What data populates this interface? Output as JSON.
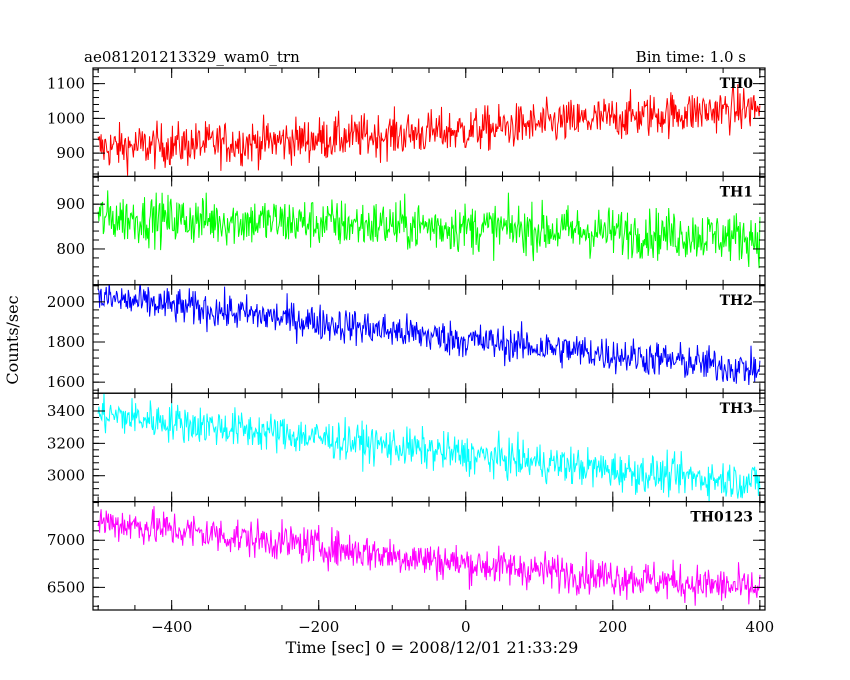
{
  "header": {
    "title": "ae081201213329_wam0_trn",
    "bin_time": "Bin time: 1.0 s"
  },
  "chart_data": {
    "type": "line",
    "title": "ae081201213329_wam0_trn",
    "subtitle": "Bin time: 1.0 s",
    "xlabel": "Time [sec] 0 = 2008/12/01 21:33:29",
    "ylabel": "Counts/sec",
    "xlim": [
      -507,
      407
    ],
    "xticks": [
      -400,
      -200,
      0,
      200,
      400
    ],
    "grid": false,
    "panels": [
      {
        "name": "TH0",
        "color": "#ff0000",
        "ylim": [
          833,
          1145
        ],
        "yticks": [
          900,
          1000,
          1100
        ],
        "trend_x": [
          -500,
          -250,
          0,
          250,
          400
        ],
        "trend_y": [
          915,
          935,
          965,
          1010,
          1030
        ],
        "noise": 32
      },
      {
        "name": "TH1",
        "color": "#00ff00",
        "ylim": [
          720,
          962
        ],
        "yticks": [
          800,
          900
        ],
        "trend_x": [
          -500,
          -250,
          0,
          250,
          400
        ],
        "trend_y": [
          870,
          860,
          848,
          835,
          825
        ],
        "noise": 28
      },
      {
        "name": "TH2",
        "color": "#0000ff",
        "ylim": [
          1545,
          2085
        ],
        "yticks": [
          1600,
          1800,
          2000
        ],
        "trend_x": [
          -500,
          -250,
          0,
          250,
          400
        ],
        "trend_y": [
          2020,
          1920,
          1810,
          1720,
          1660
        ],
        "noise": 45
      },
      {
        "name": "TH3",
        "color": "#00ffff",
        "ylim": [
          2840,
          3510
        ],
        "yticks": [
          3000,
          3200,
          3400
        ],
        "trend_x": [
          -500,
          -250,
          0,
          250,
          400
        ],
        "trend_y": [
          3380,
          3260,
          3130,
          3010,
          2960
        ],
        "noise": 60
      },
      {
        "name": "TH0123",
        "color": "#ff00ff",
        "ylim": [
          6260,
          7410
        ],
        "yticks": [
          6500,
          7000
        ],
        "trend_x": [
          -500,
          -250,
          0,
          250,
          400
        ],
        "trend_y": [
          7200,
          6980,
          6750,
          6580,
          6480
        ],
        "noise": 100
      }
    ]
  }
}
